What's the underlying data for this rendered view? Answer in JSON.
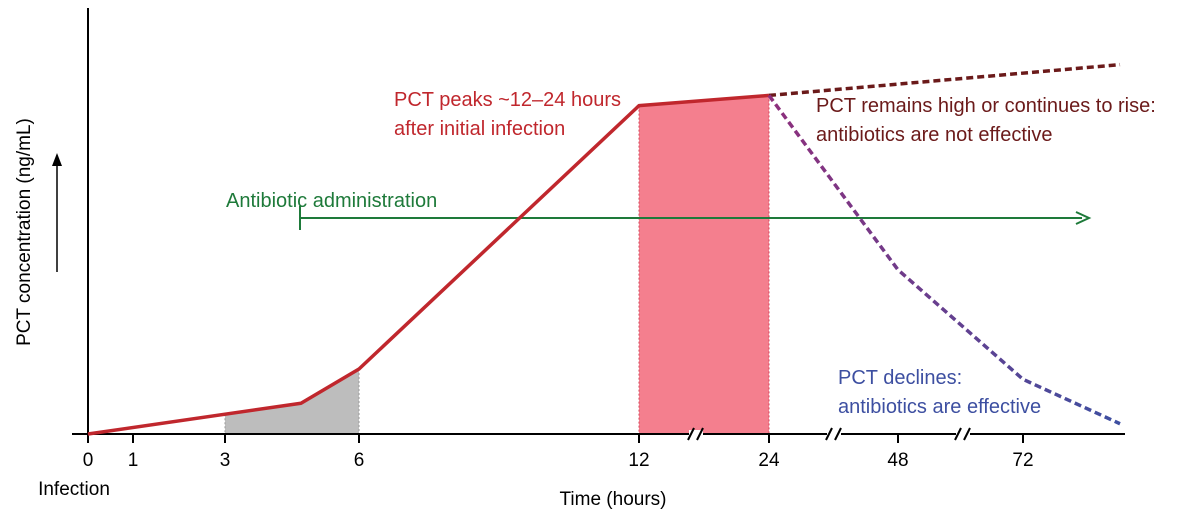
{
  "chart_data": {
    "type": "line",
    "xlabel": "Time (hours)",
    "ylabel": "PCT concentration (ng/mL)",
    "x_ticks": [
      "0",
      "1",
      "3",
      "6",
      "12",
      "24",
      "48",
      "72"
    ],
    "x_sublabel": "Infection",
    "axis_breaks": [
      {
        "between": [
          "12",
          "24"
        ]
      },
      {
        "between": [
          "24",
          "48"
        ]
      },
      {
        "between": [
          "48",
          "72"
        ]
      }
    ],
    "series": [
      {
        "points": [
          {
            "x": "0",
            "y": 0
          },
          {
            "x": "4.5",
            "y": 9
          },
          {
            "x": "6",
            "y": 19
          },
          {
            "x": "12",
            "y": 96
          },
          {
            "x": "24",
            "y": 99
          }
        ],
        "color": "#c0272d",
        "style": "solid"
      },
      {
        "points": [
          {
            "x": "24",
            "y": 99
          },
          {
            "x": "72+",
            "y": 108
          }
        ],
        "color": "#6b1a1a",
        "style": "dashed"
      },
      {
        "points": [
          {
            "x": "24",
            "y": 99
          },
          {
            "x": "48",
            "y": 48
          },
          {
            "x": "72",
            "y": 16
          },
          {
            "x": "72+",
            "y": 3
          }
        ],
        "colors": [
          "#8e2f7c",
          "#3d4fa1"
        ],
        "style": "dashed"
      }
    ],
    "shaded_regions": [
      {
        "from": "3",
        "to": "6",
        "color": "#bdbdbd"
      },
      {
        "from": "12",
        "to": "24",
        "color": "#f47f8e"
      }
    ],
    "annotations": {
      "peak": [
        "PCT peaks ~12–24 hours",
        "after initial infection"
      ],
      "not_effective": [
        "PCT remains high or continues to rise:",
        "antibiotics are not effective"
      ],
      "effective": [
        "PCT declines:",
        "antibiotics are effective"
      ],
      "antibiotic": "Antibiotic administration"
    },
    "colors": {
      "peak_text": "#c0272d",
      "not_effective_text": "#6b1a1a",
      "effective_text": "#3d4fa1",
      "antibiotic": "#1e7a3a"
    }
  }
}
